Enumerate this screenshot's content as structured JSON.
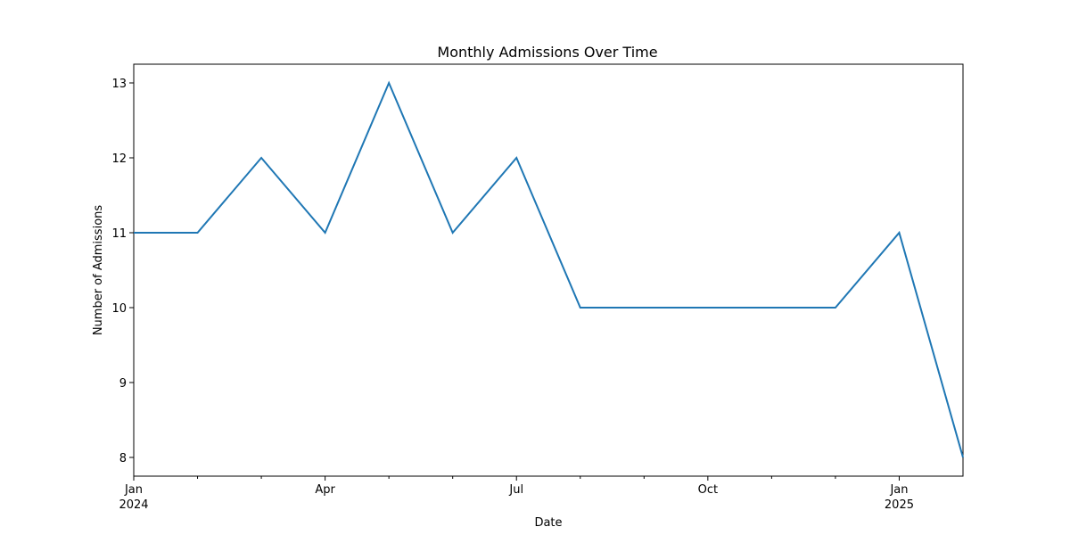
{
  "chart_data": {
    "type": "line",
    "title": "Monthly Admissions Over Time",
    "xlabel": "Date",
    "ylabel": "Number of Admissions",
    "x": [
      "2024-01",
      "2024-02",
      "2024-03",
      "2024-04",
      "2024-05",
      "2024-06",
      "2024-07",
      "2024-08",
      "2024-09",
      "2024-10",
      "2024-11",
      "2024-12",
      "2025-01",
      "2025-02"
    ],
    "series": [
      {
        "values": [
          11,
          11,
          12,
          11,
          13,
          11,
          12,
          10,
          10,
          10,
          10,
          10,
          11,
          8
        ],
        "color": "#1f77b4"
      }
    ],
    "ylim": [
      7.75,
      13.25
    ],
    "y_ticks": [
      8,
      9,
      10,
      11,
      12,
      13
    ],
    "x_major_ticks": [
      {
        "x": "2024-01",
        "label": "Jan",
        "sublabel": "2024"
      },
      {
        "x": "2024-04",
        "label": "Apr",
        "sublabel": ""
      },
      {
        "x": "2024-07",
        "label": "Jul",
        "sublabel": ""
      },
      {
        "x": "2024-10",
        "label": "Oct",
        "sublabel": ""
      },
      {
        "x": "2025-01",
        "label": "Jan",
        "sublabel": "2025"
      }
    ],
    "x_minor_ticks": [
      "2024-02",
      "2024-03",
      "2024-05",
      "2024-06",
      "2024-08",
      "2024-09",
      "2024-11",
      "2024-12"
    ],
    "grid": false,
    "legend": false
  }
}
